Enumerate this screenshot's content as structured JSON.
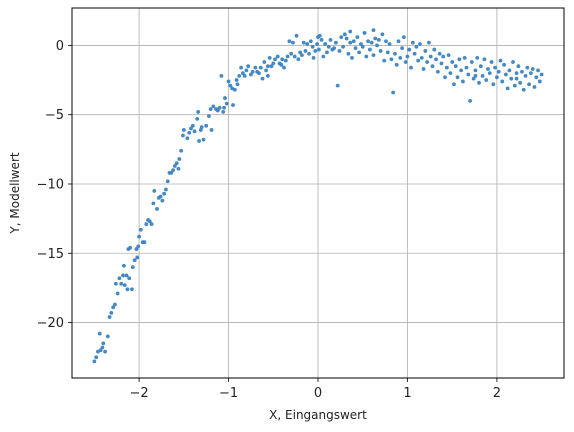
{
  "chart_data": {
    "type": "scatter",
    "title": "",
    "xlabel": "X, Eingangswert",
    "ylabel": "Y, Modellwert",
    "xlim": [
      -2.75,
      2.75
    ],
    "ylim": [
      -24.0,
      2.7
    ],
    "xticks": [
      -2,
      -1,
      0,
      1,
      2
    ],
    "xtick_labels": [
      "−2",
      "−1",
      "0",
      "1",
      "2"
    ],
    "yticks": [
      0,
      -5,
      -10,
      -15,
      -20
    ],
    "ytick_labels": [
      "0",
      "−5",
      "−10",
      "−15",
      "−20"
    ],
    "grid": true,
    "marker_color": "#3a83c0",
    "points": [
      [
        -2.5,
        -22.8
      ],
      [
        -2.48,
        -22.5
      ],
      [
        -2.46,
        -22.1
      ],
      [
        -2.44,
        -20.8
      ],
      [
        -2.43,
        -22.0
      ],
      [
        -2.41,
        -21.8
      ],
      [
        -2.4,
        -21.5
      ],
      [
        -2.38,
        -22.1
      ],
      [
        -2.35,
        -21.0
      ],
      [
        -2.33,
        -19.6
      ],
      [
        -2.31,
        -19.3
      ],
      [
        -2.29,
        -18.9
      ],
      [
        -2.27,
        -18.7
      ],
      [
        -2.26,
        -17.2
      ],
      [
        -2.24,
        -17.9
      ],
      [
        -2.22,
        -16.8
      ],
      [
        -2.2,
        -17.2
      ],
      [
        -2.18,
        -16.6
      ],
      [
        -2.17,
        -15.9
      ],
      [
        -2.16,
        -17.3
      ],
      [
        -2.14,
        -16.6
      ],
      [
        -2.13,
        -17.6
      ],
      [
        -2.11,
        -16.8
      ],
      [
        -2.1,
        -14.6
      ],
      [
        -2.08,
        -17.6
      ],
      [
        -2.07,
        -16.0
      ],
      [
        -2.05,
        -15.5
      ],
      [
        -2.03,
        -14.7
      ],
      [
        -2.02,
        -15.3
      ],
      [
        -2.01,
        -14.5
      ],
      [
        -2.0,
        -13.8
      ],
      [
        -1.98,
        -13.3
      ],
      [
        -1.96,
        -14.2
      ],
      [
        -1.94,
        -14.2
      ],
      [
        -1.92,
        -12.9
      ],
      [
        -1.9,
        -12.6
      ],
      [
        -1.88,
        -12.7
      ],
      [
        -1.86,
        -12.9
      ],
      [
        -1.84,
        -11.4
      ],
      [
        -1.83,
        -10.5
      ],
      [
        -1.8,
        -11.8
      ],
      [
        -1.78,
        -11.0
      ],
      [
        -1.76,
        -10.9
      ],
      [
        -1.74,
        -11.2
      ],
      [
        -1.72,
        -10.7
      ],
      [
        -1.7,
        -10.4
      ],
      [
        -1.68,
        -9.8
      ],
      [
        -1.66,
        -9.2
      ],
      [
        -1.64,
        -9.2
      ],
      [
        -1.62,
        -9.0
      ],
      [
        -1.6,
        -8.7
      ],
      [
        -1.58,
        -8.5
      ],
      [
        -1.56,
        -8.9
      ],
      [
        -1.55,
        -8.2
      ],
      [
        -1.53,
        -7.6
      ],
      [
        -1.51,
        -6.5
      ],
      [
        -1.5,
        -6.1
      ],
      [
        -1.46,
        -6.7
      ],
      [
        -1.44,
        -6.3
      ],
      [
        -1.4,
        -5.8
      ],
      [
        -1.38,
        -6.2
      ],
      [
        -1.35,
        -5.3
      ],
      [
        -1.34,
        -4.8
      ],
      [
        -1.33,
        -6.9
      ],
      [
        -1.31,
        -6.1
      ],
      [
        -1.3,
        -5.9
      ],
      [
        -1.28,
        -6.8
      ],
      [
        -1.25,
        -5.8
      ],
      [
        -1.22,
        -5.1
      ],
      [
        -1.2,
        -4.6
      ],
      [
        -1.19,
        -6.1
      ],
      [
        -1.17,
        -4.4
      ],
      [
        -1.14,
        -4.6
      ],
      [
        -1.12,
        -4.7
      ],
      [
        -1.1,
        -4.5
      ],
      [
        -1.08,
        -2.2
      ],
      [
        -1.06,
        -4.8
      ],
      [
        -1.05,
        -4.5
      ],
      [
        -1.04,
        -3.8
      ],
      [
        -1.02,
        -4.2
      ],
      [
        -1.0,
        -2.6
      ],
      [
        -0.98,
        -2.9
      ],
      [
        -0.96,
        -3.1
      ],
      [
        -0.95,
        -4.3
      ],
      [
        -0.93,
        -3.2
      ],
      [
        -0.91,
        -2.5
      ],
      [
        -0.9,
        -2.8
      ],
      [
        -0.88,
        -2.2
      ],
      [
        -0.86,
        -1.6
      ],
      [
        -0.84,
        -2.0
      ],
      [
        -0.82,
        -2.2
      ],
      [
        -0.8,
        -1.8
      ],
      [
        -0.78,
        -1.5
      ],
      [
        -0.75,
        -2.1
      ],
      [
        -0.73,
        -1.9
      ],
      [
        -0.7,
        -1.6
      ],
      [
        -0.68,
        -1.9
      ],
      [
        -0.66,
        -2.0
      ],
      [
        -0.64,
        -1.6
      ],
      [
        -0.62,
        -2.4
      ],
      [
        -0.6,
        -1.2
      ],
      [
        -0.58,
        -1.8
      ],
      [
        -0.56,
        -1.5
      ],
      [
        -0.54,
        -0.9
      ],
      [
        -0.52,
        -1.5
      ],
      [
        -0.5,
        -1.3
      ],
      [
        -0.48,
        -1.0
      ],
      [
        -0.45,
        -0.8
      ],
      [
        -0.43,
        -1.3
      ],
      [
        -0.41,
        -1.4
      ],
      [
        -0.4,
        -1.0
      ],
      [
        -0.38,
        -1.6
      ],
      [
        -0.36,
        -1.1
      ],
      [
        -0.34,
        -0.8
      ],
      [
        -0.32,
        0.3
      ],
      [
        -0.3,
        -0.6
      ],
      [
        -0.28,
        0.2
      ],
      [
        -0.26,
        -0.8
      ],
      [
        -0.24,
        0.7
      ],
      [
        -0.22,
        -1.0
      ],
      [
        -0.2,
        -0.5
      ],
      [
        -0.18,
        -0.7
      ],
      [
        -0.16,
        0.2
      ],
      [
        -0.14,
        -0.4
      ],
      [
        -0.12,
        0.1
      ],
      [
        -0.1,
        -0.6
      ],
      [
        -0.08,
        0.3
      ],
      [
        -0.06,
        -0.1
      ],
      [
        -0.05,
        -0.9
      ],
      [
        -0.03,
        -0.4
      ],
      [
        -0.01,
        0.1
      ],
      [
        0.0,
        0.6
      ],
      [
        0.01,
        -0.3
      ],
      [
        0.02,
        0.7
      ],
      [
        0.04,
        0.4
      ],
      [
        0.06,
        -0.8
      ],
      [
        0.08,
        0.1
      ],
      [
        0.1,
        -0.5
      ],
      [
        0.12,
        -0.1
      ],
      [
        0.14,
        0.4
      ],
      [
        0.16,
        -0.3
      ],
      [
        0.18,
        -0.2
      ],
      [
        0.2,
        0.2
      ],
      [
        0.22,
        -2.9
      ],
      [
        0.24,
        -0.4
      ],
      [
        0.26,
        0.6
      ],
      [
        0.28,
        -0.1
      ],
      [
        0.3,
        0.8
      ],
      [
        0.32,
        0.5
      ],
      [
        0.34,
        -0.6
      ],
      [
        0.36,
        0.2
      ],
      [
        0.38,
        -0.9
      ],
      [
        0.4,
        0.3
      ],
      [
        0.42,
        -0.2
      ],
      [
        0.44,
        0.6
      ],
      [
        0.46,
        -0.5
      ],
      [
        0.48,
        0.1
      ],
      [
        0.5,
        -0.1
      ],
      [
        0.52,
        0.9
      ],
      [
        0.54,
        -0.8
      ],
      [
        0.56,
        0.3
      ],
      [
        0.58,
        -0.3
      ],
      [
        0.6,
        0.2
      ],
      [
        0.62,
        -0.7
      ],
      [
        0.64,
        0.5
      ],
      [
        0.66,
        0.0
      ],
      [
        0.68,
        0.4
      ],
      [
        0.7,
        -0.4
      ],
      [
        0.72,
        0.8
      ],
      [
        0.74,
        -1.1
      ],
      [
        0.76,
        0.3
      ],
      [
        0.78,
        -0.5
      ],
      [
        0.8,
        0.1
      ],
      [
        0.82,
        -1.0
      ],
      [
        0.84,
        -3.4
      ],
      [
        0.86,
        -0.6
      ],
      [
        0.88,
        -1.4
      ],
      [
        0.9,
        0.3
      ],
      [
        0.92,
        -0.9
      ],
      [
        0.94,
        -0.2
      ],
      [
        0.96,
        0.6
      ],
      [
        0.98,
        -1.2
      ],
      [
        1.0,
        -0.8
      ],
      [
        1.02,
        -0.3
      ],
      [
        1.04,
        -1.6
      ],
      [
        1.06,
        0.2
      ],
      [
        1.08,
        -0.6
      ],
      [
        1.1,
        -0.1
      ],
      [
        1.12,
        -1.1
      ],
      [
        1.14,
        0.1
      ],
      [
        1.16,
        -0.9
      ],
      [
        1.18,
        -1.7
      ],
      [
        1.2,
        -0.4
      ],
      [
        1.22,
        -1.2
      ],
      [
        1.24,
        0.2
      ],
      [
        1.26,
        -0.8
      ],
      [
        1.28,
        -1.5
      ],
      [
        1.3,
        -0.3
      ],
      [
        1.32,
        -1.0
      ],
      [
        1.34,
        -1.9
      ],
      [
        1.36,
        -0.6
      ],
      [
        1.38,
        -1.3
      ],
      [
        1.4,
        -0.8
      ],
      [
        1.42,
        -2.3
      ],
      [
        1.44,
        -1.6
      ],
      [
        1.46,
        -0.7
      ],
      [
        1.48,
        -2.0
      ],
      [
        1.5,
        -1.2
      ],
      [
        1.52,
        -2.8
      ],
      [
        1.54,
        -1.5
      ],
      [
        1.56,
        -2.3
      ],
      [
        1.58,
        -1.0
      ],
      [
        1.6,
        -1.8
      ],
      [
        1.62,
        -2.6
      ],
      [
        1.64,
        -0.9
      ],
      [
        1.66,
        -1.6
      ],
      [
        1.68,
        -2.1
      ],
      [
        1.7,
        -4.0
      ],
      [
        1.72,
        -1.2
      ],
      [
        1.74,
        -2.4
      ],
      [
        1.76,
        -1.8
      ],
      [
        1.78,
        -0.9
      ],
      [
        1.8,
        -2.7
      ],
      [
        1.82,
        -1.5
      ],
      [
        1.84,
        -2.2
      ],
      [
        1.86,
        -1.0
      ],
      [
        1.88,
        -2.5
      ],
      [
        1.9,
        -1.7
      ],
      [
        1.92,
        -2.0
      ],
      [
        1.94,
        -1.2
      ],
      [
        1.96,
        -2.8
      ],
      [
        1.98,
        -1.6
      ],
      [
        2.0,
        -2.3
      ],
      [
        2.02,
        -1.9
      ],
      [
        2.04,
        -1.1
      ],
      [
        2.06,
        -2.6
      ],
      [
        2.08,
        -1.4
      ],
      [
        2.1,
        -2.1
      ],
      [
        2.12,
        -3.1
      ],
      [
        2.14,
        -1.8
      ],
      [
        2.16,
        -2.4
      ],
      [
        2.18,
        -1.2
      ],
      [
        2.2,
        -2.9
      ],
      [
        2.22,
        -2.0
      ],
      [
        2.24,
        -1.5
      ],
      [
        2.26,
        -2.7
      ],
      [
        2.28,
        -1.9
      ],
      [
        2.3,
        -3.2
      ],
      [
        2.32,
        -2.2
      ],
      [
        2.34,
        -1.6
      ],
      [
        2.36,
        -2.8
      ],
      [
        2.38,
        -2.0
      ],
      [
        2.4,
        -1.7
      ],
      [
        2.42,
        -3.0
      ],
      [
        2.44,
        -2.3
      ],
      [
        2.46,
        -1.8
      ],
      [
        2.48,
        -2.6
      ],
      [
        2.5,
        -2.1
      ],
      [
        -1.42,
        -6.0
      ],
      [
        -0.56,
        -2.2
      ],
      [
        0.36,
        1.0
      ],
      [
        0.62,
        1.1
      ],
      [
        1.76,
        -2.2
      ],
      [
        2.22,
        -2.4
      ],
      [
        -2.12,
        -14.7
      ]
    ]
  }
}
